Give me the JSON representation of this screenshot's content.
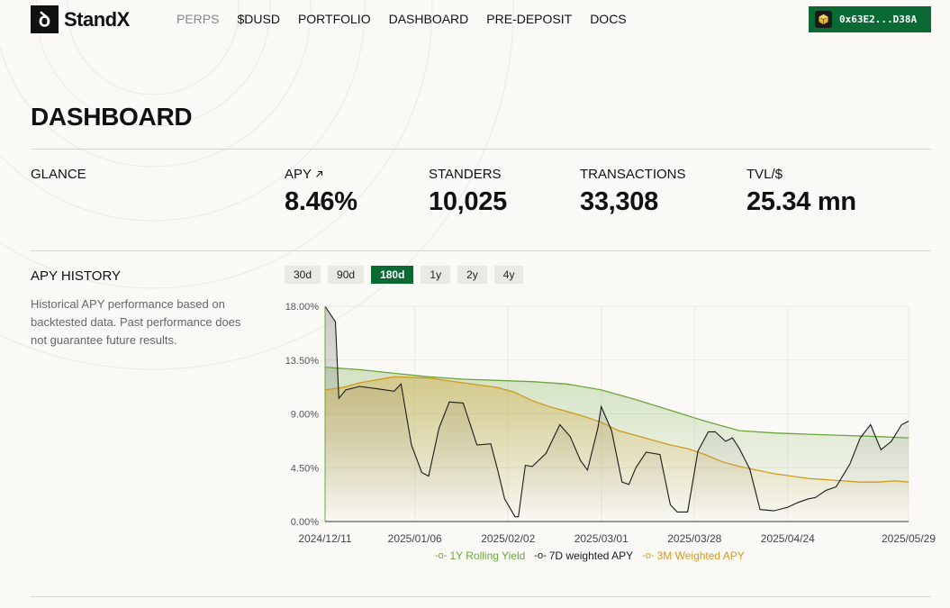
{
  "brand": {
    "name": "StandX",
    "mark": "ꝺ"
  },
  "nav": [
    "PERPS",
    "$DUSD",
    "PORTFOLIO",
    "DASHBOARD",
    "PRE-DEPOSIT",
    "DOCS"
  ],
  "wallet": {
    "address": "0x63E2...D38A",
    "icon": "cube-icon"
  },
  "page_title": "DASHBOARD",
  "glance": {
    "label": "GLANCE",
    "stats": [
      {
        "label": "APY",
        "value": "8.46%",
        "icon": "arrow-up-right-icon"
      },
      {
        "label": "STANDERS",
        "value": "10,025"
      },
      {
        "label": "TRANSACTIONS",
        "value": "33,308"
      },
      {
        "label": "TVL/$",
        "value": "25.34 mn"
      }
    ]
  },
  "apy_history": {
    "label": "APY HISTORY",
    "description": "Historical APY performance based on backtested data. Past performance does not guarantee future results.",
    "ranges": [
      "30d",
      "90d",
      "180d",
      "1y",
      "2y",
      "4y"
    ],
    "selected_range": "180d"
  },
  "colors": {
    "accent": "#0b6a34",
    "rolling": "#6aa63a",
    "weekly": "#1a1a1a",
    "weighted": "#d19a1f"
  },
  "chart_data": {
    "type": "area",
    "yticks": [
      "18.00%",
      "13.50%",
      "9.00%",
      "4.50%",
      "0.00%"
    ],
    "ylim": [
      0,
      18
    ],
    "xticks": [
      "2024/12/11",
      "2025/01/06",
      "2025/02/02",
      "2025/03/01",
      "2025/03/28",
      "2025/04/24",
      "2025/05/29"
    ],
    "x_days": [
      0,
      26,
      53,
      80,
      107,
      134,
      169
    ],
    "grid": true,
    "legend_position": "bottom",
    "series": [
      {
        "name": "1Y Rolling Yield",
        "x": [
          0,
          10,
          20,
          30,
          40,
          50,
          60,
          70,
          80,
          90,
          100,
          110,
          120,
          130,
          140,
          150,
          160,
          169
        ],
        "values": [
          12.9,
          12.7,
          12.4,
          12.1,
          11.9,
          11.8,
          11.7,
          11.5,
          11.0,
          10.2,
          9.3,
          8.4,
          7.6,
          7.4,
          7.3,
          7.2,
          7.1,
          7.0
        ]
      },
      {
        "name": "7D weighted APY",
        "x": [
          0,
          3,
          4,
          6,
          10,
          15,
          20,
          22,
          25,
          28,
          30,
          33,
          36,
          40,
          44,
          48,
          50,
          52,
          55,
          56,
          58,
          60,
          64,
          68,
          71,
          74,
          76,
          79,
          80,
          83,
          86,
          88,
          90,
          93,
          97,
          100,
          102,
          105,
          108,
          111,
          113,
          116,
          118,
          120,
          123,
          126,
          130,
          134,
          137,
          140,
          142,
          145,
          148,
          152,
          155,
          158,
          161,
          164,
          167,
          169
        ],
        "values": [
          18.0,
          16.7,
          10.3,
          11.0,
          11.3,
          11.1,
          10.9,
          11.5,
          6.4,
          4.1,
          3.8,
          7.8,
          10.0,
          9.9,
          6.4,
          6.5,
          4.3,
          1.9,
          0.4,
          0.4,
          4.7,
          4.6,
          5.7,
          8.1,
          7.1,
          5.1,
          4.3,
          7.8,
          9.6,
          7.6,
          3.3,
          3.1,
          4.5,
          5.8,
          5.6,
          1.4,
          0.8,
          0.8,
          5.9,
          7.5,
          7.5,
          6.7,
          7.0,
          6.1,
          4.4,
          1.0,
          0.9,
          1.2,
          1.6,
          1.9,
          2.0,
          2.6,
          2.9,
          4.8,
          7.0,
          8.1,
          6.0,
          6.7,
          8.1,
          8.4
        ]
      },
      {
        "name": "3M Weighted APY",
        "x": [
          0,
          5,
          10,
          20,
          30,
          40,
          50,
          55,
          60,
          65,
          70,
          75,
          80,
          85,
          90,
          95,
          100,
          105,
          110,
          115,
          120,
          125,
          130,
          135,
          140,
          145,
          150,
          155,
          160,
          165,
          169
        ],
        "values": [
          11.0,
          11.2,
          11.6,
          12.1,
          12.0,
          11.6,
          11.2,
          10.8,
          10.1,
          9.6,
          9.2,
          8.8,
          8.3,
          7.6,
          7.2,
          6.8,
          6.4,
          6.1,
          5.6,
          5.0,
          4.6,
          4.3,
          4.0,
          3.8,
          3.6,
          3.5,
          3.4,
          3.3,
          3.3,
          3.4,
          3.3
        ]
      }
    ]
  }
}
